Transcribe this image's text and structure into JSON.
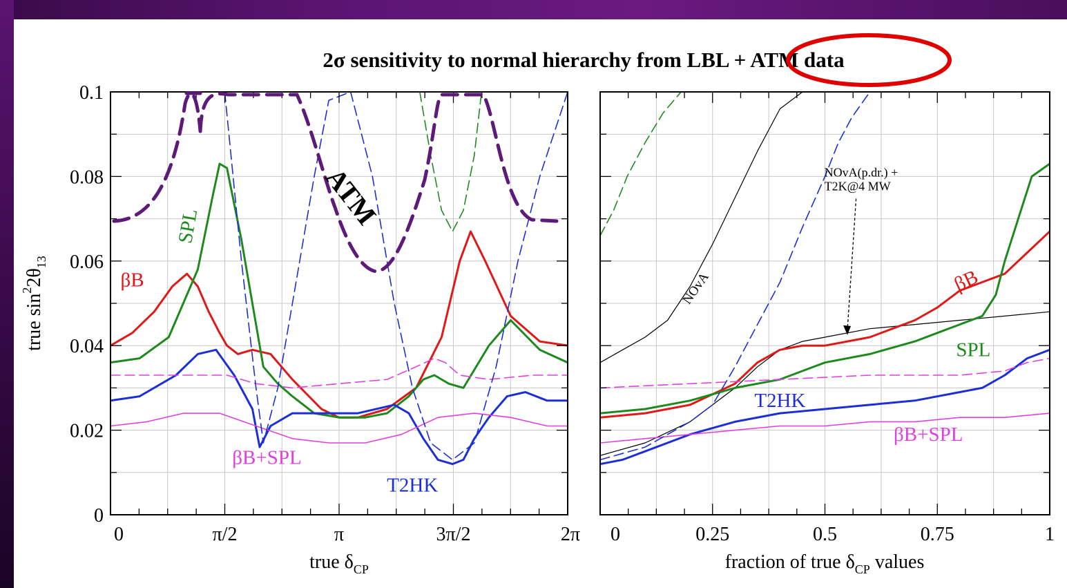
{
  "chart_title": "2σ sensitivity to normal hierarchy from LBL + ATM data",
  "colors": {
    "red": "#e01818",
    "green": "#1e8a1e",
    "blue": "#1c2fd6",
    "magenta": "#e040e0",
    "black": "#000000",
    "purple": "#5e1a78",
    "highlight": "#e00000"
  },
  "chart_data": [
    {
      "type": "line",
      "xlabel_main": "true δ",
      "xlabel_sub": "CP",
      "ylabel_main": "true  sin",
      "ylabel_sup": "2",
      "ylabel_tail": "2θ",
      "ylabel_sub": "13",
      "xlim": [
        0,
        6.2832
      ],
      "ylim": [
        0,
        0.1
      ],
      "xticks": [
        {
          "v": 0,
          "label": "0"
        },
        {
          "v": 1.5708,
          "label": "π/2"
        },
        {
          "v": 3.1416,
          "label": "π"
        },
        {
          "v": 4.7124,
          "label": "3π/2"
        },
        {
          "v": 6.2832,
          "label": "2π"
        }
      ],
      "yticks": [
        {
          "v": 0,
          "label": "0"
        },
        {
          "v": 0.02,
          "label": "0.02"
        },
        {
          "v": 0.04,
          "label": "0.04"
        },
        {
          "v": 0.06,
          "label": "0.06"
        },
        {
          "v": 0.08,
          "label": "0.08"
        },
        {
          "v": 0.1,
          "label": "0.1"
        }
      ],
      "grid": true,
      "series": [
        {
          "name": "βB",
          "color": "red",
          "style": "solid",
          "width": 3,
          "x": [
            0,
            0.3,
            0.6,
            0.85,
            1.05,
            1.2,
            1.35,
            1.5,
            1.6,
            1.75,
            1.95,
            2.2,
            2.5,
            2.9,
            3.14,
            3.4,
            3.8,
            4.2,
            4.55,
            4.8,
            4.95,
            5.15,
            5.5,
            5.9,
            6.2832
          ],
          "y": [
            0.04,
            0.043,
            0.048,
            0.054,
            0.057,
            0.054,
            0.048,
            0.043,
            0.04,
            0.038,
            0.039,
            0.038,
            0.032,
            0.025,
            0.023,
            0.023,
            0.025,
            0.03,
            0.042,
            0.06,
            0.067,
            0.06,
            0.047,
            0.041,
            0.04
          ]
        },
        {
          "name": "SPL",
          "color": "green",
          "style": "solid",
          "width": 3,
          "x": [
            0,
            0.4,
            0.8,
            1.2,
            1.4,
            1.5,
            1.6,
            1.8,
            2.1,
            2.3,
            2.5,
            2.8,
            3.14,
            3.5,
            3.8,
            4.1,
            4.3,
            4.45,
            4.65,
            4.85,
            5.2,
            5.5,
            5.9,
            6.2832
          ],
          "y": [
            0.036,
            0.037,
            0.042,
            0.058,
            0.075,
            0.083,
            0.082,
            0.065,
            0.035,
            0.031,
            0.028,
            0.024,
            0.023,
            0.023,
            0.024,
            0.028,
            0.032,
            0.033,
            0.031,
            0.03,
            0.04,
            0.046,
            0.039,
            0.036
          ]
        },
        {
          "name": "T2HK",
          "color": "blue",
          "style": "solid",
          "width": 3,
          "x": [
            0,
            0.4,
            0.9,
            1.2,
            1.45,
            1.7,
            1.95,
            2.05,
            2.2,
            2.5,
            2.9,
            3.4,
            3.9,
            4.1,
            4.3,
            4.5,
            4.7,
            4.85,
            5.0,
            5.2,
            5.45,
            5.7,
            6.0,
            6.2832
          ],
          "y": [
            0.027,
            0.028,
            0.033,
            0.038,
            0.039,
            0.033,
            0.025,
            0.016,
            0.021,
            0.024,
            0.024,
            0.024,
            0.026,
            0.024,
            0.018,
            0.013,
            0.012,
            0.013,
            0.018,
            0.023,
            0.028,
            0.029,
            0.027,
            0.027
          ]
        },
        {
          "name": "βB+SPL",
          "color": "magenta",
          "style": "solid",
          "width": 1.6,
          "x": [
            0,
            0.5,
            1.0,
            1.5,
            2.0,
            2.5,
            3.0,
            3.5,
            4.0,
            4.5,
            5.0,
            5.5,
            6.0,
            6.2832
          ],
          "y": [
            0.021,
            0.022,
            0.024,
            0.024,
            0.021,
            0.018,
            0.017,
            0.017,
            0.019,
            0.023,
            0.024,
            0.023,
            0.021,
            0.021
          ]
        },
        {
          "name": "",
          "color": "magenta",
          "style": "dashed",
          "width": 1.6,
          "x": [
            0,
            0.8,
            1.6,
            2.0,
            2.5,
            3.14,
            3.8,
            4.2,
            4.45,
            4.6,
            4.8,
            5.2,
            5.8,
            6.2832
          ],
          "y": [
            0.033,
            0.033,
            0.033,
            0.031,
            0.03,
            0.031,
            0.032,
            0.035,
            0.037,
            0.036,
            0.033,
            0.032,
            0.033,
            0.033
          ]
        },
        {
          "name": "",
          "color": "blue",
          "style": "dashed",
          "width": 1.6,
          "x": [
            1.57,
            1.8,
            2.0,
            2.1,
            2.3,
            2.55,
            2.8,
            3.0,
            3.3,
            3.6,
            3.9,
            4.15,
            4.4,
            4.7,
            5.0,
            5.3,
            5.6,
            5.9,
            6.2832
          ],
          "y": [
            0.1,
            0.06,
            0.03,
            0.017,
            0.03,
            0.055,
            0.08,
            0.098,
            0.1,
            0.08,
            0.05,
            0.03,
            0.017,
            0.013,
            0.017,
            0.035,
            0.06,
            0.08,
            0.1
          ]
        },
        {
          "name": "",
          "color": "green",
          "style": "dashed",
          "width": 1.6,
          "x": [
            4.25,
            4.4,
            4.55,
            4.7,
            4.85,
            5.0,
            5.1
          ],
          "y": [
            0.1,
            0.085,
            0.072,
            0.067,
            0.072,
            0.085,
            0.1
          ]
        }
      ],
      "labels": [
        {
          "text": "SPL",
          "x": 1.15,
          "y": 0.068,
          "color": "green",
          "rotate": -80
        },
        {
          "text": "βB",
          "x": 0.3,
          "y": 0.054,
          "color": "red",
          "rotate": 0
        },
        {
          "text": "βB+SPL",
          "x": 2.15,
          "y": 0.012,
          "color": "magenta",
          "rotate": 0
        },
        {
          "text": "T2HK",
          "x": 4.15,
          "y": 0.0055,
          "color": "blue",
          "rotate": 0
        }
      ]
    },
    {
      "type": "line",
      "xlabel_main": "fraction of true δ",
      "xlabel_sub": "CP",
      "xlabel_tail": " values",
      "xlim": [
        0,
        1
      ],
      "ylim": [
        0,
        0.1
      ],
      "xticks": [
        {
          "v": 0,
          "label": "0"
        },
        {
          "v": 0.25,
          "label": "0.25"
        },
        {
          "v": 0.5,
          "label": "0.5"
        },
        {
          "v": 0.75,
          "label": "0.75"
        },
        {
          "v": 1,
          "label": "1"
        }
      ],
      "yticks": [
        {
          "v": 0
        },
        {
          "v": 0.02
        },
        {
          "v": 0.04
        },
        {
          "v": 0.06
        },
        {
          "v": 0.08
        },
        {
          "v": 0.1
        }
      ],
      "grid": true,
      "series": [
        {
          "name": "NOvA",
          "color": "black",
          "style": "solid",
          "width": 1.2,
          "x": [
            0,
            0.05,
            0.1,
            0.15,
            0.2,
            0.25,
            0.3,
            0.35,
            0.4,
            0.45
          ],
          "y": [
            0.036,
            0.039,
            0.042,
            0.046,
            0.054,
            0.064,
            0.075,
            0.086,
            0.096,
            0.1
          ]
        },
        {
          "name": "NOvA(p.dr.) + T2K@4 MW",
          "color": "black",
          "style": "solid",
          "width": 1.2,
          "x": [
            0,
            0.1,
            0.2,
            0.3,
            0.35,
            0.4,
            0.45,
            0.5,
            0.6,
            0.7,
            0.8,
            0.9,
            1.0
          ],
          "y": [
            0.014,
            0.017,
            0.022,
            0.03,
            0.035,
            0.039,
            0.041,
            0.042,
            0.044,
            0.045,
            0.046,
            0.047,
            0.048
          ]
        },
        {
          "name": "βB",
          "color": "red",
          "style": "solid",
          "width": 3,
          "x": [
            0,
            0.1,
            0.2,
            0.3,
            0.35,
            0.4,
            0.45,
            0.5,
            0.55,
            0.6,
            0.65,
            0.7,
            0.75,
            0.8,
            0.85,
            0.9,
            0.95,
            1.0
          ],
          "y": [
            0.023,
            0.024,
            0.026,
            0.031,
            0.036,
            0.039,
            0.04,
            0.04,
            0.041,
            0.042,
            0.044,
            0.046,
            0.049,
            0.053,
            0.055,
            0.057,
            0.062,
            0.067
          ]
        },
        {
          "name": "SPL",
          "color": "green",
          "style": "solid",
          "width": 3,
          "x": [
            0,
            0.1,
            0.2,
            0.3,
            0.4,
            0.45,
            0.5,
            0.6,
            0.7,
            0.75,
            0.8,
            0.85,
            0.88,
            0.9,
            0.93,
            0.96,
            1.0
          ],
          "y": [
            0.024,
            0.025,
            0.027,
            0.03,
            0.032,
            0.034,
            0.036,
            0.038,
            0.041,
            0.043,
            0.045,
            0.047,
            0.052,
            0.06,
            0.07,
            0.08,
            0.083
          ]
        },
        {
          "name": "T2HK",
          "color": "blue",
          "style": "solid",
          "width": 3,
          "x": [
            0,
            0.05,
            0.1,
            0.2,
            0.3,
            0.4,
            0.5,
            0.6,
            0.7,
            0.8,
            0.85,
            0.9,
            0.95,
            1.0
          ],
          "y": [
            0.012,
            0.013,
            0.015,
            0.019,
            0.022,
            0.024,
            0.025,
            0.026,
            0.027,
            0.029,
            0.03,
            0.033,
            0.037,
            0.039
          ]
        },
        {
          "name": "βB+SPL",
          "color": "magenta",
          "style": "solid",
          "width": 1.6,
          "x": [
            0,
            0.1,
            0.2,
            0.3,
            0.4,
            0.5,
            0.6,
            0.7,
            0.8,
            0.9,
            1.0
          ],
          "y": [
            0.017,
            0.018,
            0.019,
            0.02,
            0.021,
            0.021,
            0.022,
            0.022,
            0.023,
            0.023,
            0.024
          ]
        },
        {
          "name": "",
          "color": "magenta",
          "style": "dashed",
          "width": 1.6,
          "x": [
            0,
            0.2,
            0.4,
            0.6,
            0.8,
            0.9,
            0.95,
            1.0
          ],
          "y": [
            0.03,
            0.031,
            0.032,
            0.033,
            0.033,
            0.034,
            0.036,
            0.037
          ]
        },
        {
          "name": "",
          "color": "blue",
          "style": "dashed",
          "width": 1.6,
          "x": [
            0,
            0.1,
            0.2,
            0.25,
            0.3,
            0.35,
            0.4,
            0.45,
            0.5,
            0.53,
            0.56,
            0.6
          ],
          "y": [
            0.013,
            0.016,
            0.022,
            0.026,
            0.035,
            0.045,
            0.055,
            0.068,
            0.08,
            0.088,
            0.094,
            0.1
          ]
        },
        {
          "name": "",
          "color": "green",
          "style": "dashed",
          "width": 1.6,
          "x": [
            0,
            0.03,
            0.06,
            0.1,
            0.14,
            0.18
          ],
          "y": [
            0.066,
            0.072,
            0.08,
            0.088,
            0.095,
            0.1
          ]
        }
      ],
      "labels": [
        {
          "text": "NOvA",
          "x": 0.22,
          "y": 0.053,
          "color": "black",
          "rotate": -55,
          "size": 19
        },
        {
          "text": "βB",
          "x": 0.82,
          "y": 0.054,
          "color": "red",
          "rotate": -25
        },
        {
          "text": "SPL",
          "x": 0.83,
          "y": 0.0375,
          "color": "green",
          "rotate": 0
        },
        {
          "text": "T2HK",
          "x": 0.4,
          "y": 0.0255,
          "color": "blue",
          "rotate": 0
        },
        {
          "text": "βB+SPL",
          "x": 0.73,
          "y": 0.0175,
          "color": "magenta",
          "rotate": 0
        }
      ],
      "annotation": {
        "lines": [
          "NOvA(p.dr.) +",
          "T2K@4 MW"
        ],
        "x": 0.6,
        "y": 0.08,
        "arrow_to": [
          0.55,
          0.0425
        ]
      }
    }
  ],
  "overlay": {
    "atm_label": "ATM"
  }
}
